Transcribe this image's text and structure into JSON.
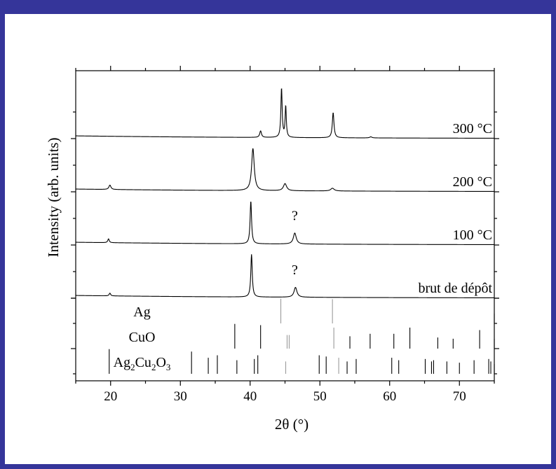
{
  "chart_data": {
    "type": "line",
    "xlabel": "2θ (°)",
    "ylabel": "Intensity (arb. units)",
    "xlim": [
      15,
      75
    ],
    "xticks": [
      "20",
      "30",
      "40",
      "50",
      "60",
      "70"
    ],
    "series": [
      {
        "name": "300 °C",
        "baseline": 0.2,
        "peaks": [
          [
            41.5,
            0.12,
            0.3
          ],
          [
            44.5,
            0.9,
            0.22
          ],
          [
            45.1,
            0.57,
            0.2
          ],
          [
            51.9,
            0.46,
            0.28
          ],
          [
            57.3,
            0.02,
            0.4
          ]
        ]
      },
      {
        "name": "200 °C",
        "baseline": 0.2,
        "peaks": [
          [
            19.9,
            0.08,
            0.35
          ],
          [
            40.4,
            0.77,
            0.45
          ],
          [
            45.0,
            0.13,
            0.55
          ],
          [
            51.8,
            0.05,
            0.6
          ]
        ]
      },
      {
        "name": "100 °C",
        "baseline": 0.2,
        "peaks": [
          [
            19.7,
            0.07,
            0.25
          ],
          [
            40.1,
            0.78,
            0.25
          ],
          [
            46.4,
            0.2,
            0.5
          ]
        ],
        "annotation": {
          "text": "?",
          "x": 46.4
        }
      },
      {
        "name": "brut de dépôt",
        "baseline": 0.2,
        "peaks": [
          [
            19.9,
            0.05,
            0.25
          ],
          [
            40.2,
            0.78,
            0.25
          ],
          [
            46.5,
            0.18,
            0.5
          ]
        ],
        "annotation": {
          "text": "?",
          "x": 46.4
        }
      }
    ],
    "reference_patterns": [
      {
        "name": "Ag",
        "label_parts": [
          {
            "text": "Ag"
          }
        ],
        "lines": [
          [
            44.4,
            1.0
          ],
          [
            51.8,
            0.98
          ],
          [
            75.0,
            0.4
          ]
        ]
      },
      {
        "name": "CuO",
        "label_parts": [
          {
            "text": "CuO"
          }
        ],
        "lines": [
          [
            37.8,
            1.0
          ],
          [
            41.5,
            0.95
          ],
          [
            45.3,
            0.55
          ],
          [
            45.6,
            0.55
          ],
          [
            52.0,
            0.85
          ],
          [
            54.3,
            0.5
          ],
          [
            57.2,
            0.6
          ],
          [
            60.6,
            0.6
          ],
          [
            62.9,
            0.85
          ],
          [
            66.9,
            0.45
          ],
          [
            69.1,
            0.4
          ],
          [
            72.9,
            0.75
          ],
          [
            75.0,
            0.4
          ]
        ]
      },
      {
        "name": "Ag2Cu2O3",
        "label_parts": [
          {
            "text": "Ag"
          },
          {
            "text": "2",
            "sub": true
          },
          {
            "text": "Cu"
          },
          {
            "text": "2",
            "sub": true
          },
          {
            "text": "O"
          },
          {
            "text": "3",
            "sub": true
          }
        ],
        "lines": [
          [
            19.8,
            1.0
          ],
          [
            31.6,
            0.9
          ],
          [
            34.0,
            0.65
          ],
          [
            35.3,
            0.75
          ],
          [
            38.1,
            0.55
          ],
          [
            40.6,
            0.6
          ],
          [
            41.1,
            0.75
          ],
          [
            45.1,
            0.5
          ],
          [
            49.9,
            0.75
          ],
          [
            50.9,
            0.7
          ],
          [
            52.7,
            0.65
          ],
          [
            53.9,
            0.5
          ],
          [
            55.2,
            0.6
          ],
          [
            60.3,
            0.65
          ],
          [
            61.3,
            0.55
          ],
          [
            65.1,
            0.6
          ],
          [
            66.0,
            0.5
          ],
          [
            66.3,
            0.55
          ],
          [
            68.2,
            0.5
          ],
          [
            70.0,
            0.45
          ],
          [
            72.1,
            0.55
          ],
          [
            74.2,
            0.6
          ],
          [
            74.5,
            0.5
          ],
          [
            75.0,
            0.4
          ]
        ]
      }
    ]
  }
}
